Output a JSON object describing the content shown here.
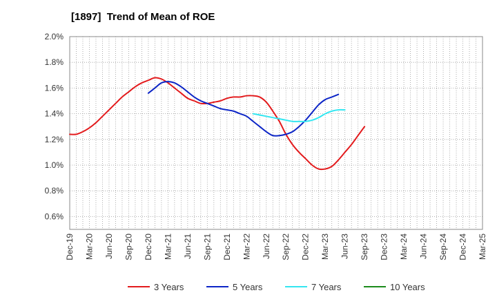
{
  "chart_data": {
    "type": "line",
    "title": "[1897]  Trend of Mean of ROE",
    "xlabel": "",
    "ylabel": "",
    "x_ticks": [
      "Dec-19",
      "Mar-20",
      "Jun-20",
      "Sep-20",
      "Dec-20",
      "Mar-21",
      "Jun-21",
      "Sep-21",
      "Dec-21",
      "Mar-22",
      "Jun-22",
      "Sep-22",
      "Dec-22",
      "Mar-23",
      "Jun-23",
      "Sep-23",
      "Dec-23",
      "Mar-24",
      "Jun-24",
      "Sep-24",
      "Dec-24",
      "Mar-25"
    ],
    "y_ticks": [
      "0.6%",
      "0.8%",
      "1.0%",
      "1.2%",
      "1.4%",
      "1.6%",
      "1.8%",
      "2.0%"
    ],
    "ylim": [
      0.5,
      2.0
    ],
    "grid": true,
    "legend_position": "bottom",
    "series": [
      {
        "name": "3 Years",
        "color": "#e31a1c",
        "start_index": 0,
        "values": [
          1.24,
          1.24,
          1.26,
          1.29,
          1.33,
          1.38,
          1.43,
          1.48,
          1.53,
          1.57,
          1.61,
          1.64,
          1.66,
          1.68,
          1.67,
          1.64,
          1.6,
          1.56,
          1.52,
          1.5,
          1.48,
          1.48,
          1.49,
          1.5,
          1.52,
          1.53,
          1.53,
          1.54,
          1.54,
          1.53,
          1.49,
          1.42,
          1.34,
          1.24,
          1.16,
          1.1,
          1.05,
          1.0,
          0.97,
          0.97,
          0.99,
          1.04,
          1.1,
          1.16,
          1.23,
          1.3
        ]
      },
      {
        "name": "5 Years",
        "color": "#0b24c6",
        "start_index": 12,
        "values": [
          1.56,
          1.6,
          1.64,
          1.65,
          1.64,
          1.61,
          1.57,
          1.53,
          1.5,
          1.48,
          1.46,
          1.44,
          1.43,
          1.42,
          1.4,
          1.38,
          1.34,
          1.3,
          1.26,
          1.23,
          1.23,
          1.24,
          1.26,
          1.3,
          1.35,
          1.41,
          1.47,
          1.51,
          1.53,
          1.55
        ]
      },
      {
        "name": "7 Years",
        "color": "#33e6f0",
        "start_index": 28,
        "values": [
          1.4,
          1.39,
          1.38,
          1.37,
          1.36,
          1.35,
          1.34,
          1.34,
          1.34,
          1.35,
          1.37,
          1.4,
          1.42,
          1.43,
          1.43
        ]
      },
      {
        "name": "10 Years",
        "color": "#1a8a1a",
        "start_index": 0,
        "values": []
      }
    ]
  }
}
